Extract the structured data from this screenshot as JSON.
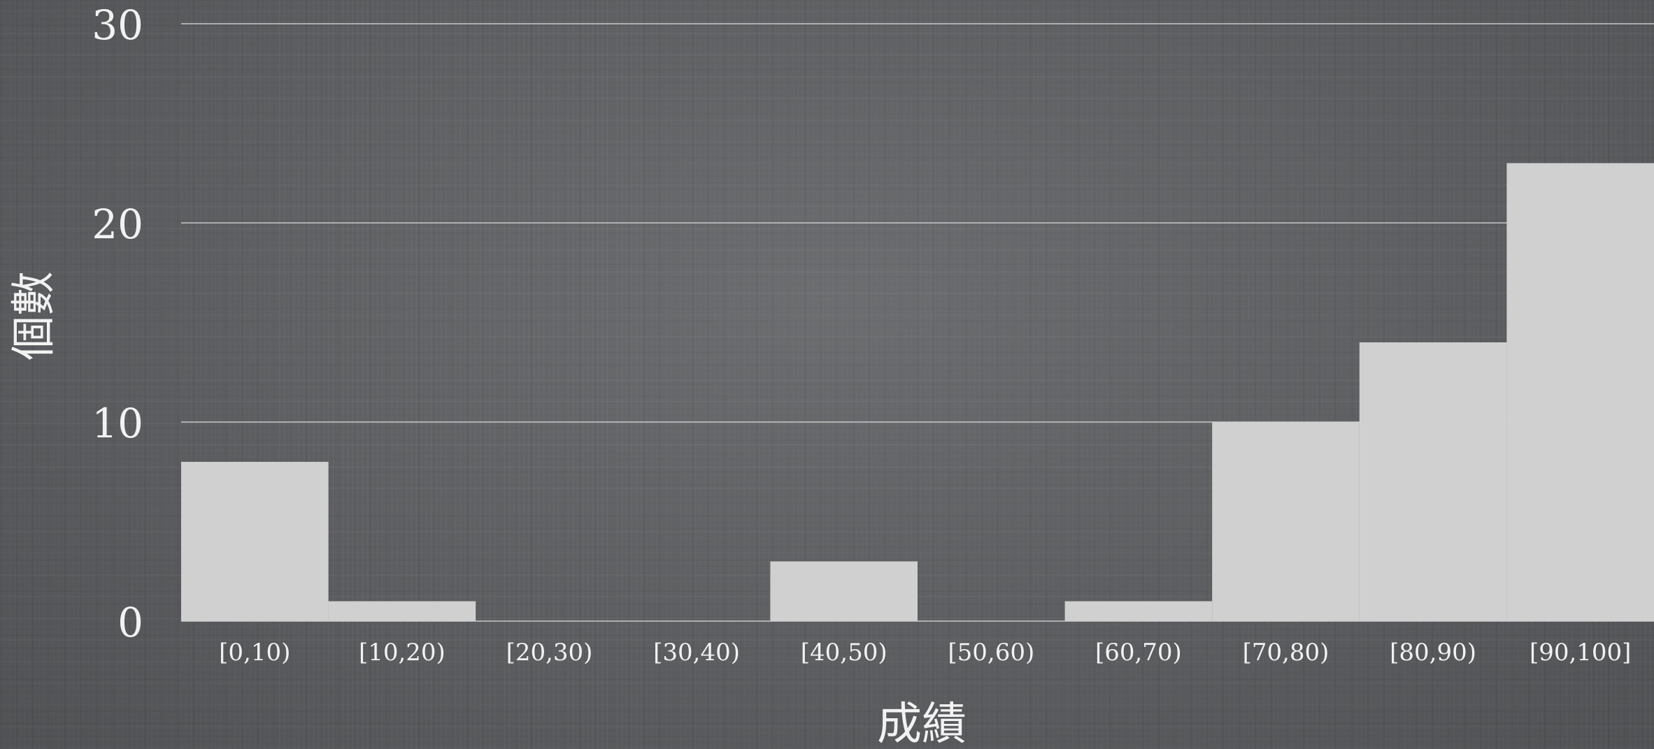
{
  "chart_data": {
    "type": "bar",
    "title": "",
    "xlabel": "成績",
    "ylabel": "個數",
    "categories": [
      "[0,10)",
      "[10,20)",
      "[20,30)",
      "[30,40)",
      "[40,50)",
      "[50,60)",
      "[60,70)",
      "[70,80)",
      "[80,90)",
      "[90,100]"
    ],
    "values": [
      8,
      1,
      0,
      0,
      3,
      0,
      1,
      10,
      14,
      23
    ],
    "yticks": [
      "0",
      "10",
      "20",
      "30"
    ],
    "ylim": [
      0,
      30
    ],
    "grid": true,
    "legend": "none",
    "colors": {
      "bar": "#cfd0cf",
      "gridline": "#c8c8c8",
      "text": "#f2f2f2"
    }
  }
}
